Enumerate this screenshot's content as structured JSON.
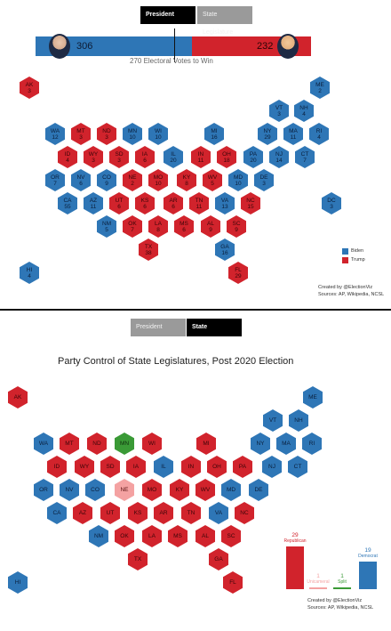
{
  "top": {
    "tabs": {
      "president": "President",
      "legislature": "State Legislature"
    },
    "biden_ev": "306",
    "trump_ev": "232",
    "bar_biden_fraction": 0.569,
    "threshold_label": "270 Electoral Votes to Win",
    "legend": {
      "biden": "Biden",
      "trump": "Trump",
      "biden_color": "#2e76b6",
      "trump_color": "#d1232c"
    },
    "credits": {
      "line1": "Created by @ElectionViz",
      "line2": "Sources: AP, Wikipedia, NCSL"
    },
    "states": [
      {
        "ab": "AK",
        "ev": "3",
        "party": "red"
      },
      {
        "ab": "ME",
        "ev": "2",
        "party": "blue"
      },
      {
        "ab": "VT",
        "ev": "3",
        "party": "blue"
      },
      {
        "ab": "NH",
        "ev": "4",
        "party": "blue"
      },
      {
        "ab": "WA",
        "ev": "12",
        "party": "blue"
      },
      {
        "ab": "MT",
        "ev": "3",
        "party": "red"
      },
      {
        "ab": "ND",
        "ev": "3",
        "party": "red"
      },
      {
        "ab": "MN",
        "ev": "10",
        "party": "blue"
      },
      {
        "ab": "WI",
        "ev": "10",
        "party": "blue"
      },
      {
        "ab": "MI",
        "ev": "16",
        "party": "blue"
      },
      {
        "ab": "NY",
        "ev": "29",
        "party": "blue"
      },
      {
        "ab": "MA",
        "ev": "11",
        "party": "blue"
      },
      {
        "ab": "RI",
        "ev": "4",
        "party": "blue"
      },
      {
        "ab": "ID",
        "ev": "4",
        "party": "red"
      },
      {
        "ab": "WY",
        "ev": "3",
        "party": "red"
      },
      {
        "ab": "SD",
        "ev": "3",
        "party": "red"
      },
      {
        "ab": "IA",
        "ev": "6",
        "party": "red"
      },
      {
        "ab": "IL",
        "ev": "20",
        "party": "blue"
      },
      {
        "ab": "IN",
        "ev": "11",
        "party": "red"
      },
      {
        "ab": "OH",
        "ev": "18",
        "party": "red"
      },
      {
        "ab": "PA",
        "ev": "20",
        "party": "blue"
      },
      {
        "ab": "NJ",
        "ev": "14",
        "party": "blue"
      },
      {
        "ab": "CT",
        "ev": "7",
        "party": "blue"
      },
      {
        "ab": "OR",
        "ev": "7",
        "party": "blue"
      },
      {
        "ab": "NV",
        "ev": "6",
        "party": "blue"
      },
      {
        "ab": "CO",
        "ev": "9",
        "party": "blue"
      },
      {
        "ab": "NE",
        "ev": "2",
        "party": "red"
      },
      {
        "ab": "MO",
        "ev": "10",
        "party": "red"
      },
      {
        "ab": "KY",
        "ev": "8",
        "party": "red"
      },
      {
        "ab": "WV",
        "ev": "5",
        "party": "red"
      },
      {
        "ab": "MD",
        "ev": "10",
        "party": "blue"
      },
      {
        "ab": "DE",
        "ev": "3",
        "party": "blue"
      },
      {
        "ab": "CA",
        "ev": "55",
        "party": "blue"
      },
      {
        "ab": "AZ",
        "ev": "11",
        "party": "blue"
      },
      {
        "ab": "UT",
        "ev": "6",
        "party": "red"
      },
      {
        "ab": "KS",
        "ev": "6",
        "party": "red"
      },
      {
        "ab": "AR",
        "ev": "6",
        "party": "red"
      },
      {
        "ab": "TN",
        "ev": "11",
        "party": "red"
      },
      {
        "ab": "VA",
        "ev": "13",
        "party": "blue"
      },
      {
        "ab": "NC",
        "ev": "15",
        "party": "red"
      },
      {
        "ab": "DC",
        "ev": "3",
        "party": "blue"
      },
      {
        "ab": "NM",
        "ev": "5",
        "party": "blue"
      },
      {
        "ab": "OK",
        "ev": "7",
        "party": "red"
      },
      {
        "ab": "LA",
        "ev": "8",
        "party": "red"
      },
      {
        "ab": "MS",
        "ev": "6",
        "party": "red"
      },
      {
        "ab": "AL",
        "ev": "9",
        "party": "red"
      },
      {
        "ab": "SC",
        "ev": "9",
        "party": "red"
      },
      {
        "ab": "TX",
        "ev": "38",
        "party": "red"
      },
      {
        "ab": "GA",
        "ev": "16",
        "party": "blue"
      },
      {
        "ab": "HI",
        "ev": "4",
        "party": "blue"
      },
      {
        "ab": "FL",
        "ev": "29",
        "party": "red"
      }
    ]
  },
  "bottom": {
    "tabs": {
      "president": "President",
      "legislature": "State Legislature"
    },
    "title": "Party Control of State Legislatures, Post 2020 Election",
    "credits": {
      "line1": "Created by @ElectionViz",
      "line2": "Sources: AP, Wikipedia, NCSL"
    },
    "chart_data": {
      "type": "bar",
      "categories": [
        "Republican",
        "Unicameral",
        "Split",
        "Democrat"
      ],
      "values": [
        29,
        1,
        1,
        19
      ],
      "colors": [
        "#d1232c",
        "#f4a2a2",
        "#3a9a36",
        "#2e76b6"
      ]
    },
    "states": [
      {
        "ab": "AK",
        "party": "red"
      },
      {
        "ab": "ME",
        "party": "blue"
      },
      {
        "ab": "VT",
        "party": "blue"
      },
      {
        "ab": "NH",
        "party": "blue"
      },
      {
        "ab": "WA",
        "party": "blue"
      },
      {
        "ab": "MT",
        "party": "red"
      },
      {
        "ab": "ND",
        "party": "red"
      },
      {
        "ab": "MN",
        "party": "green"
      },
      {
        "ab": "WI",
        "party": "red"
      },
      {
        "ab": "MI",
        "party": "red"
      },
      {
        "ab": "NY",
        "party": "blue"
      },
      {
        "ab": "MA",
        "party": "blue"
      },
      {
        "ab": "RI",
        "party": "blue"
      },
      {
        "ab": "ID",
        "party": "red"
      },
      {
        "ab": "WY",
        "party": "red"
      },
      {
        "ab": "SD",
        "party": "red"
      },
      {
        "ab": "IA",
        "party": "red"
      },
      {
        "ab": "IL",
        "party": "blue"
      },
      {
        "ab": "IN",
        "party": "red"
      },
      {
        "ab": "OH",
        "party": "red"
      },
      {
        "ab": "PA",
        "party": "red"
      },
      {
        "ab": "NJ",
        "party": "blue"
      },
      {
        "ab": "CT",
        "party": "blue"
      },
      {
        "ab": "OR",
        "party": "blue"
      },
      {
        "ab": "NV",
        "party": "blue"
      },
      {
        "ab": "CO",
        "party": "blue"
      },
      {
        "ab": "NE",
        "party": "pink"
      },
      {
        "ab": "MO",
        "party": "red"
      },
      {
        "ab": "KY",
        "party": "red"
      },
      {
        "ab": "WV",
        "party": "red"
      },
      {
        "ab": "MD",
        "party": "blue"
      },
      {
        "ab": "DE",
        "party": "blue"
      },
      {
        "ab": "CA",
        "party": "blue"
      },
      {
        "ab": "AZ",
        "party": "red"
      },
      {
        "ab": "UT",
        "party": "red"
      },
      {
        "ab": "KS",
        "party": "red"
      },
      {
        "ab": "AR",
        "party": "red"
      },
      {
        "ab": "TN",
        "party": "red"
      },
      {
        "ab": "VA",
        "party": "blue"
      },
      {
        "ab": "NC",
        "party": "red"
      },
      {
        "ab": "NM",
        "party": "blue"
      },
      {
        "ab": "OK",
        "party": "red"
      },
      {
        "ab": "LA",
        "party": "red"
      },
      {
        "ab": "MS",
        "party": "red"
      },
      {
        "ab": "AL",
        "party": "red"
      },
      {
        "ab": "SC",
        "party": "red"
      },
      {
        "ab": "TX",
        "party": "red"
      },
      {
        "ab": "GA",
        "party": "red"
      },
      {
        "ab": "HI",
        "party": "blue"
      },
      {
        "ab": "FL",
        "party": "red"
      }
    ]
  }
}
